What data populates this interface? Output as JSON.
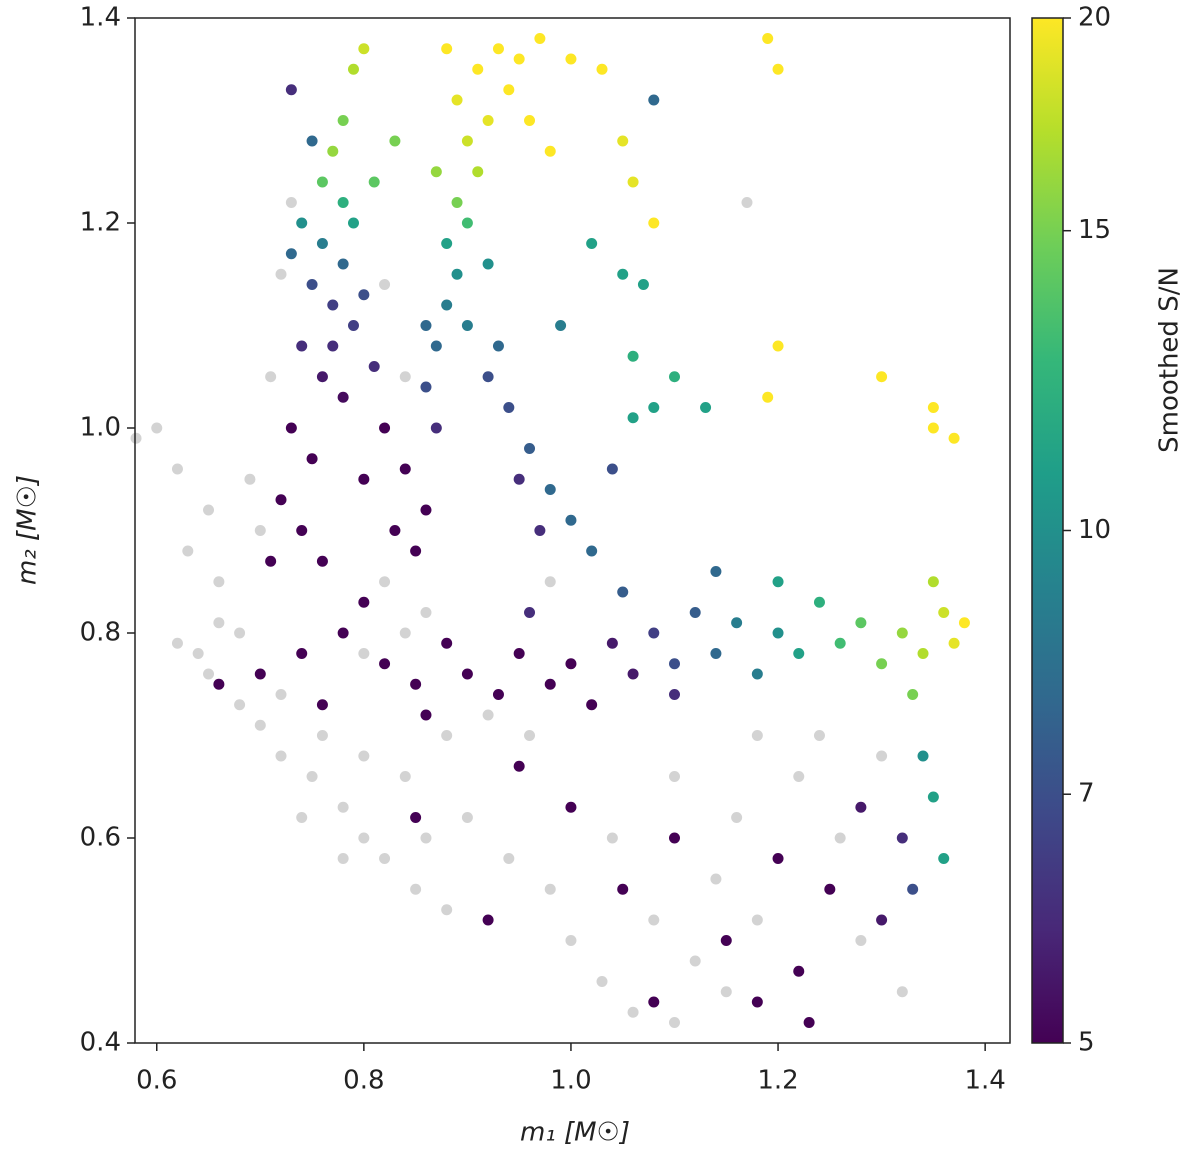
{
  "chart_data": {
    "type": "scatter",
    "xlabel": "m₁ [M☉]",
    "ylabel": "m₂ [M☉]",
    "xlim": [
      0.579,
      1.424
    ],
    "ylim": [
      0.4,
      1.4
    ],
    "xticks": [
      0.6,
      0.8,
      {
        "value": 1,
        "label": "1.0"
      },
      1.2,
      1.4
    ],
    "yticks": [
      0.4,
      0.6,
      0.8,
      {
        "value": 1,
        "label": "1.0"
      },
      1.2,
      1.4
    ],
    "colorbar": {
      "label": "Smoothed S/N",
      "colormap": "viridis",
      "log": true,
      "clim": [
        5,
        20
      ],
      "ticks": [
        5,
        7,
        10,
        15,
        20
      ]
    },
    "series": [
      {
        "color": "#d3d3d3",
        "x": [
          0.58,
          0.6,
          0.62,
          0.63,
          0.65,
          0.66,
          0.68,
          0.62,
          0.65,
          0.68,
          0.7,
          0.72,
          0.75,
          0.78,
          0.8,
          0.82,
          0.85,
          0.88,
          0.72,
          0.76,
          0.8,
          0.84,
          0.88,
          0.92,
          0.96,
          0.9,
          0.94,
          0.98,
          1.0,
          1.03,
          1.06,
          1.1,
          1.12,
          1.15,
          1.18,
          1.14,
          1.08,
          1.04,
          1.1,
          1.16,
          1.22,
          1.26,
          1.28,
          1.32,
          1.24,
          1.18,
          1.3,
          0.7,
          0.69,
          0.71,
          0.72,
          0.73,
          0.82,
          0.84,
          0.82,
          0.86,
          0.8,
          0.84,
          0.66,
          0.64,
          0.74,
          0.78,
          0.86,
          1.17,
          0.98
        ],
        "y": [
          0.99,
          1.0,
          0.96,
          0.88,
          0.92,
          0.85,
          0.8,
          0.79,
          0.76,
          0.73,
          0.71,
          0.68,
          0.66,
          0.63,
          0.6,
          0.58,
          0.55,
          0.53,
          0.74,
          0.7,
          0.68,
          0.66,
          0.7,
          0.72,
          0.7,
          0.62,
          0.58,
          0.55,
          0.5,
          0.46,
          0.43,
          0.42,
          0.48,
          0.45,
          0.52,
          0.56,
          0.52,
          0.6,
          0.66,
          0.62,
          0.66,
          0.6,
          0.5,
          0.45,
          0.7,
          0.7,
          0.68,
          0.9,
          0.95,
          1.05,
          1.15,
          1.22,
          1.14,
          1.05,
          0.85,
          0.82,
          0.78,
          0.8,
          0.81,
          0.78,
          0.62,
          0.58,
          0.6,
          1.22,
          0.85
        ]
      },
      {
        "x": [
          0.73,
          0.75,
          0.78,
          0.8,
          0.79,
          0.77,
          0.76,
          0.78,
          0.74,
          0.76,
          0.78,
          0.75,
          0.77,
          0.79,
          0.74,
          0.76,
          0.78,
          0.73,
          0.75,
          0.72,
          0.74,
          0.76,
          0.8,
          0.82,
          0.71,
          0.73,
          0.8,
          0.81,
          0.77,
          0.79,
          0.81,
          0.83,
          0.85,
          0.86,
          0.84,
          0.83,
          0.87,
          0.86,
          0.87,
          0.88,
          0.89,
          0.88,
          0.9,
          0.89,
          0.91,
          0.9,
          0.92,
          0.89,
          0.91,
          0.93,
          0.95,
          0.97,
          1.0,
          0.88,
          0.94,
          0.96,
          0.98,
          0.86,
          0.9,
          0.92,
          0.87,
          1.05,
          1.08,
          1.03,
          1.06,
          1.08,
          1.19,
          1.2,
          0.92,
          0.94,
          0.96,
          0.98,
          1.0,
          1.02,
          0.95,
          0.97,
          0.93,
          0.99,
          1.02,
          1.05,
          1.06,
          1.08,
          1.1,
          1.07,
          1.04,
          0.7,
          0.74,
          0.78,
          0.8,
          0.82,
          0.85,
          0.88,
          0.9,
          0.93,
          0.95,
          0.98,
          1.0,
          1.02,
          1.04,
          1.06,
          1.08,
          1.1,
          1.12,
          1.14,
          1.16,
          1.18,
          1.2,
          1.22,
          1.24,
          1.26,
          1.28,
          1.3,
          1.32,
          1.34,
          1.36,
          1.37,
          1.38,
          1.35,
          1.33,
          1.2,
          1.1,
          0.96,
          1.05,
          0.86,
          0.76,
          0.66,
          1.14,
          1.0,
          1.05,
          1.1,
          1.15,
          1.2,
          1.22,
          1.25,
          1.28,
          1.3,
          1.32,
          1.34,
          1.35,
          1.36,
          1.33,
          0.92,
          1.08,
          1.18,
          1.23,
          0.85,
          0.95,
          1.2,
          1.3,
          1.35,
          1.37,
          1.35,
          1.19,
          1.06,
          1.13
        ],
        "y": [
          1.33,
          1.28,
          1.3,
          1.37,
          1.35,
          1.27,
          1.24,
          1.22,
          1.2,
          1.18,
          1.16,
          1.14,
          1.12,
          1.1,
          1.08,
          1.05,
          1.03,
          1.0,
          0.97,
          0.93,
          0.9,
          0.87,
          0.95,
          1.0,
          0.87,
          1.17,
          1.13,
          1.06,
          1.08,
          1.2,
          1.24,
          1.28,
          0.88,
          0.92,
          0.96,
          0.9,
          1.0,
          1.04,
          1.08,
          1.12,
          1.15,
          1.18,
          1.2,
          1.22,
          1.25,
          1.28,
          1.3,
          1.32,
          1.35,
          1.37,
          1.36,
          1.38,
          1.36,
          1.37,
          1.33,
          1.3,
          1.27,
          1.1,
          1.1,
          1.16,
          1.25,
          1.28,
          1.32,
          1.35,
          1.24,
          1.2,
          1.38,
          1.35,
          1.05,
          1.02,
          0.98,
          0.94,
          0.91,
          0.88,
          0.95,
          0.9,
          1.08,
          1.1,
          1.18,
          1.15,
          1.07,
          1.02,
          1.05,
          1.14,
          0.96,
          0.76,
          0.78,
          0.8,
          0.83,
          0.77,
          0.75,
          0.79,
          0.76,
          0.74,
          0.78,
          0.75,
          0.77,
          0.73,
          0.79,
          0.76,
          0.8,
          0.77,
          0.82,
          0.78,
          0.81,
          0.76,
          0.8,
          0.78,
          0.83,
          0.79,
          0.81,
          0.77,
          0.8,
          0.78,
          0.82,
          0.79,
          0.81,
          0.85,
          0.74,
          0.85,
          0.74,
          0.82,
          0.84,
          0.72,
          0.73,
          0.75,
          0.86,
          0.63,
          0.55,
          0.6,
          0.5,
          0.58,
          0.47,
          0.55,
          0.63,
          0.52,
          0.6,
          0.68,
          0.64,
          0.58,
          0.55,
          0.52,
          0.44,
          0.44,
          0.42,
          0.62,
          0.67,
          1.08,
          1.05,
          1.0,
          0.99,
          1.02,
          1.03,
          1.01,
          1.02
        ],
        "c": [
          6,
          8,
          15,
          18,
          17,
          16,
          14,
          12,
          10,
          9,
          8,
          7,
          6.5,
          6.5,
          6,
          5.5,
          5.2,
          5,
          5,
          5,
          5,
          5,
          5,
          5,
          5,
          8,
          7,
          6,
          6,
          11,
          14,
          15,
          5,
          5,
          5,
          5,
          6,
          7,
          8,
          9,
          10,
          11,
          13,
          15,
          17,
          18,
          19,
          19,
          20,
          20,
          20,
          20,
          20,
          20,
          20,
          20,
          20,
          8,
          9,
          10,
          16,
          19,
          8,
          20,
          19,
          20,
          20,
          20,
          7,
          7,
          7.5,
          8,
          8,
          8,
          6,
          6,
          8,
          9,
          11,
          11,
          12,
          11,
          12,
          11,
          7,
          5,
          5,
          5,
          5,
          5,
          5,
          5,
          5,
          5,
          5,
          5,
          5,
          5,
          5.5,
          5.5,
          6.5,
          7,
          7.5,
          8,
          9,
          9,
          10,
          11,
          12,
          13,
          14,
          15,
          16,
          17,
          18,
          19,
          20,
          17,
          15,
          11,
          6,
          6,
          7.5,
          5,
          5,
          5,
          8,
          5,
          5,
          5,
          5,
          5,
          5,
          5,
          5.5,
          5.5,
          6,
          10,
          11,
          11,
          7,
          5,
          5,
          5,
          5,
          5,
          5,
          20,
          20,
          20,
          20,
          20,
          20,
          11,
          11
        ]
      }
    ]
  }
}
